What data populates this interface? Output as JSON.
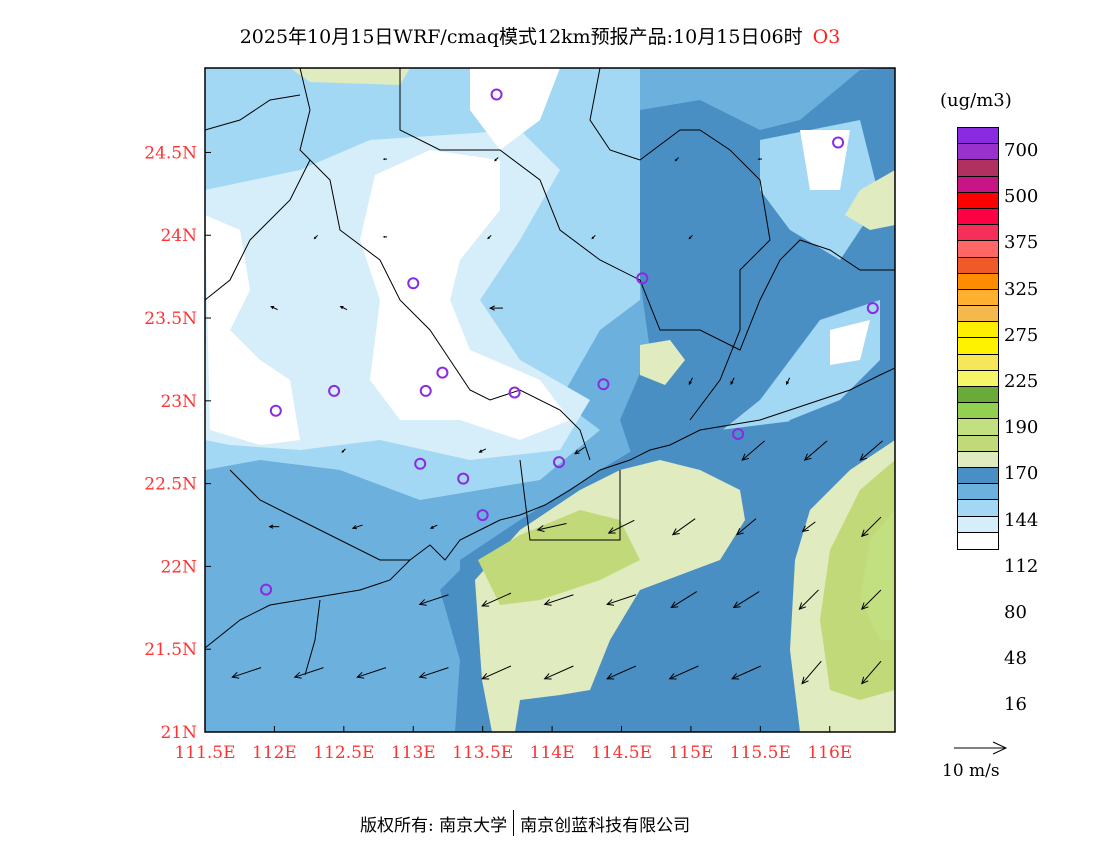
{
  "title": {
    "text": "2025年10月15日WRF/cmaq模式12km预报产品:10月15日06时",
    "pollutant": "O3"
  },
  "map": {
    "lon_range": [
      111.5,
      116.47
    ],
    "lat_range": [
      21.0,
      25.01
    ],
    "lon_ticks": [
      {
        "v": 111.5,
        "label": "111.5E"
      },
      {
        "v": 112,
        "label": "112E"
      },
      {
        "v": 112.5,
        "label": "112.5E"
      },
      {
        "v": 113,
        "label": "113E"
      },
      {
        "v": 113.5,
        "label": "113.5E"
      },
      {
        "v": 114,
        "label": "114E"
      },
      {
        "v": 114.5,
        "label": "114.5E"
      },
      {
        "v": 115,
        "label": "115E"
      },
      {
        "v": 115.5,
        "label": "115.5E"
      },
      {
        "v": 116,
        "label": "116E"
      }
    ],
    "lat_ticks": [
      {
        "v": 21,
        "label": "21N"
      },
      {
        "v": 21.5,
        "label": "21.5N"
      },
      {
        "v": 22,
        "label": "22N"
      },
      {
        "v": 22.5,
        "label": "22.5N"
      },
      {
        "v": 23,
        "label": "23N"
      },
      {
        "v": 23.5,
        "label": "23.5N"
      },
      {
        "v": 24,
        "label": "24N"
      },
      {
        "v": 24.5,
        "label": "24.5N"
      }
    ],
    "stations": [
      [
        113.6,
        24.85
      ],
      [
        116.06,
        24.56
      ],
      [
        113.0,
        23.71
      ],
      [
        114.65,
        23.74
      ],
      [
        116.31,
        23.56
      ],
      [
        113.21,
        23.17
      ],
      [
        112.43,
        23.06
      ],
      [
        113.09,
        23.06
      ],
      [
        113.73,
        23.05
      ],
      [
        114.37,
        23.1
      ],
      [
        112.01,
        22.94
      ],
      [
        115.34,
        22.8
      ],
      [
        113.05,
        22.62
      ],
      [
        113.36,
        22.53
      ],
      [
        114.05,
        22.63
      ],
      [
        113.5,
        22.31
      ],
      [
        111.94,
        21.86
      ]
    ],
    "station_color": "#8a2be2",
    "wind": [
      [
        111.8,
        21.36,
        -9,
        -3
      ],
      [
        112.25,
        21.36,
        -9,
        -3
      ],
      [
        112.7,
        21.36,
        -9,
        -3
      ],
      [
        113.15,
        21.36,
        -9,
        -3
      ],
      [
        113.6,
        21.36,
        -9,
        -4
      ],
      [
        114.05,
        21.36,
        -9,
        -4
      ],
      [
        114.5,
        21.36,
        -9,
        -4
      ],
      [
        114.95,
        21.36,
        -9,
        -4
      ],
      [
        115.4,
        21.36,
        -9,
        -4
      ],
      [
        115.87,
        21.36,
        -6,
        -7
      ],
      [
        116.3,
        21.36,
        -6,
        -7
      ],
      [
        113.15,
        21.8,
        -9,
        -3
      ],
      [
        113.6,
        21.8,
        -9,
        -4
      ],
      [
        114.05,
        21.8,
        -9,
        -3
      ],
      [
        114.5,
        21.8,
        -9,
        -3
      ],
      [
        114.95,
        21.8,
        -8,
        -5
      ],
      [
        115.4,
        21.8,
        -8,
        -5
      ],
      [
        115.85,
        21.8,
        -6,
        -6
      ],
      [
        116.3,
        21.8,
        -6,
        -6
      ],
      [
        114.0,
        22.24,
        -9,
        -2
      ],
      [
        114.5,
        22.24,
        -8,
        -4
      ],
      [
        114.95,
        22.24,
        -7,
        -5
      ],
      [
        115.4,
        22.24,
        -6,
        -5
      ],
      [
        115.85,
        22.24,
        -4,
        -3
      ],
      [
        116.3,
        22.24,
        -6,
        -6
      ],
      [
        115.45,
        22.7,
        -7,
        -6
      ],
      [
        115.9,
        22.7,
        -7,
        -6
      ],
      [
        116.3,
        22.7,
        -7,
        -6
      ],
      [
        112.0,
        22.24,
        -3,
        0
      ],
      [
        112.6,
        22.24,
        -3,
        -1
      ],
      [
        113.15,
        22.24,
        -2,
        -1
      ],
      [
        113.6,
        23.56,
        -4,
        0
      ],
      [
        112.0,
        23.56,
        -2,
        1
      ],
      [
        112.5,
        23.56,
        -2,
        1
      ],
      [
        113.55,
        23.99,
        -1,
        -1
      ],
      [
        112.3,
        23.99,
        -1,
        -1
      ],
      [
        112.8,
        23.99,
        -1,
        0
      ],
      [
        114.3,
        23.99,
        -1,
        -1
      ],
      [
        115.0,
        23.99,
        -1,
        -1
      ],
      [
        114.2,
        22.7,
        -3,
        -2
      ],
      [
        113.5,
        22.7,
        -2,
        -1
      ],
      [
        112.5,
        22.7,
        -1,
        -1
      ],
      [
        115.0,
        23.12,
        -1,
        -2
      ],
      [
        115.3,
        23.12,
        -1,
        -2
      ],
      [
        115.7,
        23.12,
        -1,
        -2
      ],
      [
        114.9,
        24.46,
        -1,
        -1
      ],
      [
        115.5,
        24.46,
        -1,
        0
      ],
      [
        113.6,
        24.46,
        -1,
        -1
      ],
      [
        112.8,
        24.46,
        -1,
        0
      ]
    ]
  },
  "legend": {
    "unit": "(ug/m3)",
    "colors": [
      "#8a2be2",
      "#9932cc",
      "#b03060",
      "#c71585",
      "#ff0000",
      "#ff0044",
      "#f52f57",
      "#ff6666",
      "#f05a28",
      "#ff8c00",
      "#ffb02e",
      "#f5b84c",
      "#ffee00",
      "#fff200",
      "#f5e65a",
      "#f5f56a",
      "#6aaa3a",
      "#92d050",
      "#c3e080",
      "#c2d97a",
      "#e0ebc0",
      "#4a8fc4",
      "#6cb0de",
      "#a3d8f4",
      "#d6eefa",
      "#ffffff"
    ],
    "labels": [
      "700",
      "500",
      "375",
      "325",
      "275",
      "225",
      "190",
      "170",
      "144",
      "112",
      "80",
      "48",
      "16"
    ]
  },
  "wind_reference": {
    "label": "10 m/s"
  },
  "footer": {
    "left": "版权所有: 南京大学",
    "right": "南京创蓝科技有限公司"
  }
}
